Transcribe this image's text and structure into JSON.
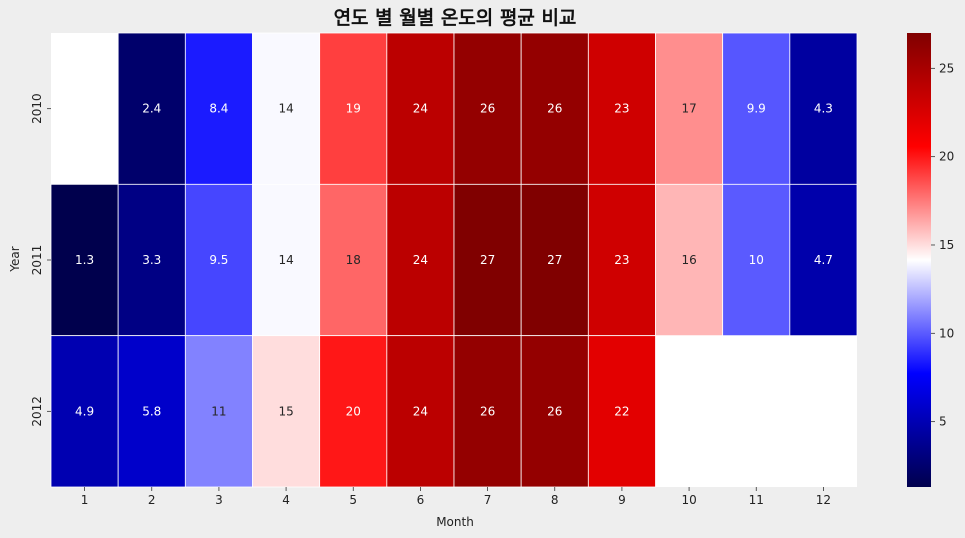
{
  "chart_data": {
    "type": "heatmap",
    "title": "연도 별 월별 온도의 평균 비교",
    "xlabel": "Month",
    "ylabel": "Year",
    "x": [
      "1",
      "2",
      "3",
      "4",
      "5",
      "6",
      "7",
      "8",
      "9",
      "10",
      "11",
      "12"
    ],
    "y": [
      "2010",
      "2011",
      "2012"
    ],
    "values": [
      [
        null,
        2.4,
        8.4,
        14,
        19,
        24,
        26,
        26,
        23,
        17,
        9.9,
        4.3
      ],
      [
        1.3,
        3.3,
        9.5,
        14,
        18,
        24,
        27,
        27,
        23,
        16,
        10,
        4.7
      ],
      [
        4.9,
        5.8,
        11,
        15,
        20,
        24,
        26,
        26,
        22,
        null,
        null,
        null
      ]
    ],
    "colormap": "seismic",
    "vmin": 1.3,
    "vmax": 27,
    "colorbar_ticks": [
      5,
      10,
      15,
      20,
      25
    ],
    "annotations": true,
    "cell_border_color": "#ffffff",
    "background_color": "#eeeeee"
  }
}
